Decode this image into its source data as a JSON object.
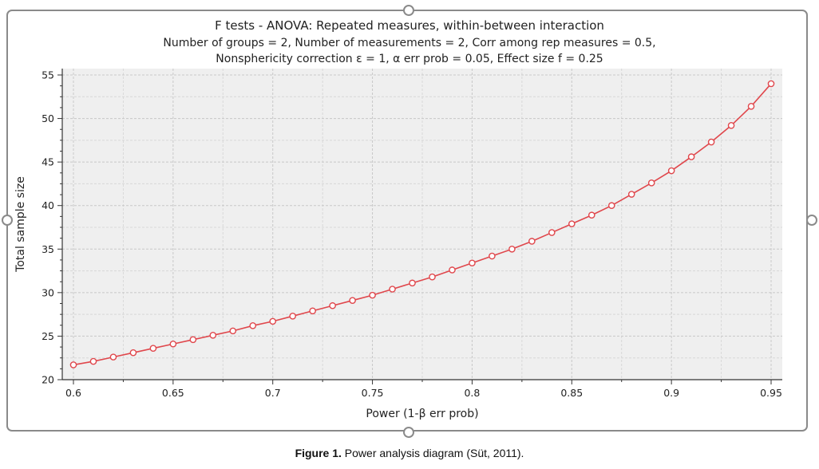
{
  "chart_data": {
    "type": "line",
    "title": "F tests - ANOVA: Repeated measures, within-between interaction",
    "subtitle_lines": [
      "Number of groups = 2, Number of measurements = 2, Corr among rep measures = 0.5,",
      "Nonsphericity correction ε = 1, α err prob = 0.05, Effect size f = 0.25"
    ],
    "xlabel": "Power (1-β err prob)",
    "ylabel": "Total sample size",
    "xlim": [
      0.6,
      0.95
    ],
    "ylim": [
      20,
      55
    ],
    "xticks": [
      "0.6",
      "0.65",
      "0.7",
      "0.75",
      "0.8",
      "0.85",
      "0.9",
      "0.95"
    ],
    "yticks": [
      "20",
      "25",
      "30",
      "35",
      "40",
      "45",
      "50",
      "55"
    ],
    "grid": true,
    "line_color": "#e0474c",
    "x": [
      0.6,
      0.61,
      0.62,
      0.63,
      0.64,
      0.65,
      0.66,
      0.67,
      0.68,
      0.69,
      0.7,
      0.71,
      0.72,
      0.73,
      0.74,
      0.75,
      0.76,
      0.77,
      0.78,
      0.79,
      0.8,
      0.81,
      0.82,
      0.83,
      0.84,
      0.85,
      0.86,
      0.87,
      0.88,
      0.89,
      0.9,
      0.91,
      0.92,
      0.93,
      0.94,
      0.95
    ],
    "y": [
      21.7,
      22.1,
      22.6,
      23.1,
      23.6,
      24.1,
      24.6,
      25.1,
      25.6,
      26.2,
      26.7,
      27.3,
      27.9,
      28.5,
      29.1,
      29.7,
      30.4,
      31.1,
      31.8,
      32.6,
      33.4,
      34.2,
      35.0,
      35.9,
      36.9,
      37.9,
      38.9,
      40.0,
      41.3,
      42.6,
      44.0,
      45.6,
      47.3,
      49.2,
      51.4,
      54.0
    ]
  },
  "caption": {
    "label": "Figure 1.",
    "text": " Power analysis diagram (Süt, 2011)."
  }
}
